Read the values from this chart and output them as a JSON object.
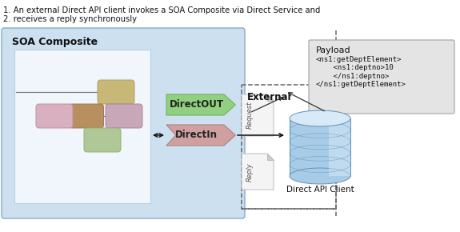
{
  "title_line1": "1. An external Direct API client invokes a SOA Composite via Direct Service and",
  "title_line2": "2. receives a reply synchronously",
  "soa_label": "SOA Composite",
  "external_label": "External",
  "directout_label": "DirectOUT",
  "directin_label": "DirectIn",
  "direct_api_label": "Direct API Client",
  "request_label": "Request",
  "reply_label": "Reply",
  "payload_title": "Payload",
  "payload_line1": "<ns1:getDeptElement>",
  "payload_line2": "    <ns1:deptno>10",
  "payload_line3": "    </ns1:deptno>",
  "payload_line4": "</ns1:getDeptElement>",
  "bg_color": "#ffffff",
  "soa_box_color": "#cce0f0",
  "soa_box_edge": "#88aacc",
  "inner_box_color": "#f0f6fc",
  "inner_box_edge": "#b8cfe0",
  "payload_box_color": "#e4e4e4",
  "payload_box_edge": "#aaaaaa",
  "directout_color": "#90d080",
  "directout_edge": "#70b060",
  "directin_color": "#d0a0a0",
  "directin_edge": "#b08080",
  "arrow_color": "#111111",
  "dashed_color": "#666666",
  "node_tan": "#c8b878",
  "node_brown": "#b89060",
  "node_pink1": "#d8b0c0",
  "node_pink2": "#c8a8b8",
  "node_green": "#b0c898",
  "node_edge": "#aaaaaa",
  "page_color": "#f4f4f4",
  "page_edge": "#bbbbbb",
  "db_body": "#a8cce8",
  "db_dark": "#6090b8",
  "db_light": "#d8eaf8"
}
